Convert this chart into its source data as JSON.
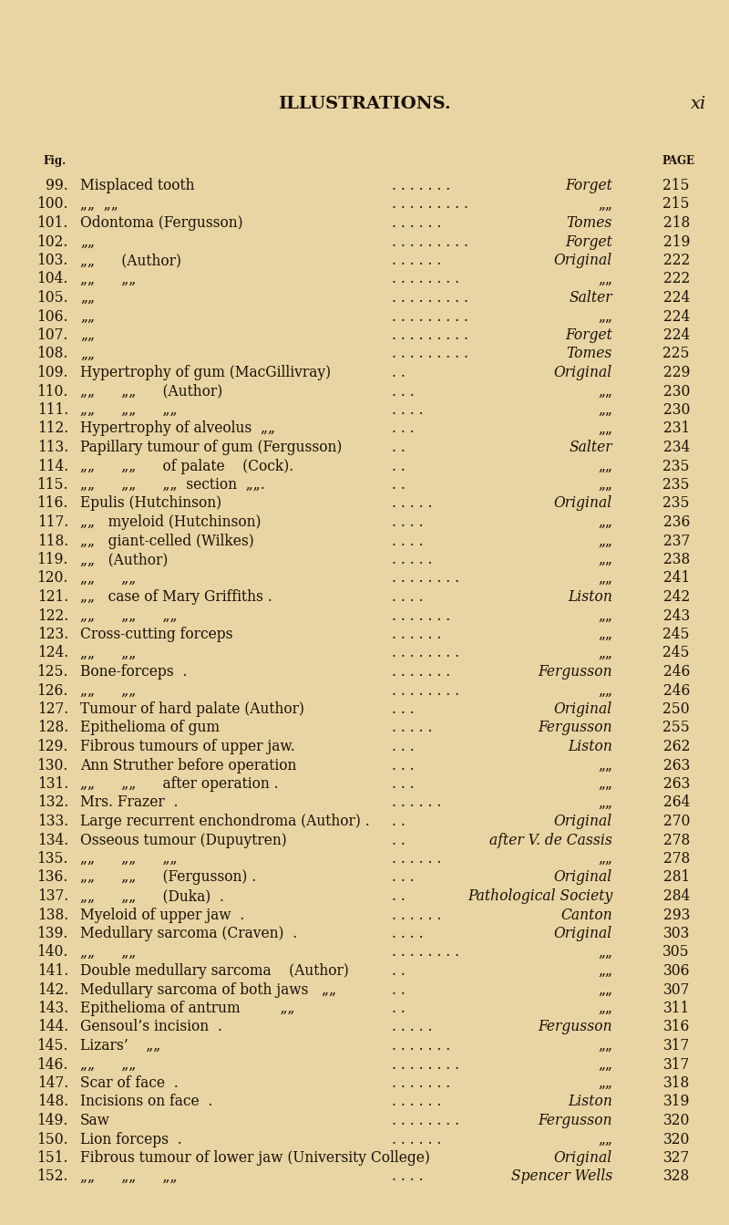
{
  "title": "ILLUSTRATIONS.",
  "page_num": "xi",
  "bg_color": "#e8d5a3",
  "text_color": "#1a1008",
  "rows": [
    {
      "num": "99.",
      "desc": "Misplaced tooth",
      "mid": ". . . . . . .",
      "source": "Forget",
      "src_italic": true,
      "page": "215"
    },
    {
      "num": "100.",
      "desc": "„„  „„",
      "mid": ". . . . . . . . .",
      "source": "„„",
      "src_italic": false,
      "page": "215"
    },
    {
      "num": "101.",
      "desc": "Odontoma (Fergusson)",
      "mid": ". . . . . .",
      "source": "Tomes",
      "src_italic": true,
      "page": "218"
    },
    {
      "num": "102.",
      "desc": "„„",
      "mid": ". . . . . . . . .",
      "source": "Forget",
      "src_italic": true,
      "page": "219"
    },
    {
      "num": "103.",
      "desc": "„„      (Author)",
      "mid": ". . . . . .",
      "source": "Original",
      "src_italic": true,
      "page": "222"
    },
    {
      "num": "104.",
      "desc": "„„      „„",
      "mid": ". . . . . . . .",
      "source": "„„",
      "src_italic": false,
      "page": "222"
    },
    {
      "num": "105.",
      "desc": "„„",
      "mid": ". . . . . . . . .",
      "source": "Salter",
      "src_italic": true,
      "page": "224"
    },
    {
      "num": "106.",
      "desc": "„„",
      "mid": ". . . . . . . . .",
      "source": "„„",
      "src_italic": false,
      "page": "224"
    },
    {
      "num": "107.",
      "desc": "„„",
      "mid": ". . . . . . . . .",
      "source": "Forget",
      "src_italic": true,
      "page": "224"
    },
    {
      "num": "108.",
      "desc": "„„",
      "mid": ". . . . . . . . .",
      "source": "Tomes",
      "src_italic": true,
      "page": "225"
    },
    {
      "num": "109.",
      "desc": "Hypertrophy of gum (MacGillivray)",
      "mid": ". .",
      "source": "Original",
      "src_italic": true,
      "page": "229"
    },
    {
      "num": "110.",
      "desc": "„„      „„      (Author)",
      "mid": ". . .",
      "source": "„„",
      "src_italic": false,
      "page": "230"
    },
    {
      "num": "111.",
      "desc": "„„      „„      „„",
      "mid": ". . . .",
      "source": "„„",
      "src_italic": false,
      "page": "230"
    },
    {
      "num": "112.",
      "desc": "Hypertrophy of alveolus  „„",
      "mid": ". . .",
      "source": "„„",
      "src_italic": false,
      "page": "231"
    },
    {
      "num": "113.",
      "desc": "Papillary tumour of gum (Fergusson)",
      "mid": ". .",
      "source": "Salter",
      "src_italic": true,
      "page": "234"
    },
    {
      "num": "114.",
      "desc": "„„      „„      of palate    (Cock).",
      "mid": ". .",
      "source": "„„",
      "src_italic": false,
      "page": "235"
    },
    {
      "num": "115.",
      "desc": "„„      „„      „„  section  „„.",
      "mid": ". .",
      "source": "„„",
      "src_italic": false,
      "page": "235"
    },
    {
      "num": "116.",
      "desc": "Epulis (Hutchinson)",
      "mid": ". . . . .",
      "source": "Original",
      "src_italic": true,
      "page": "235"
    },
    {
      "num": "117.",
      "desc": "„„   myeloid (Hutchinson)",
      "mid": ". . . .",
      "source": "„„",
      "src_italic": false,
      "page": "236"
    },
    {
      "num": "118.",
      "desc": "„„   giant-celled (Wilkes)",
      "mid": ". . . .",
      "source": "„„",
      "src_italic": false,
      "page": "237"
    },
    {
      "num": "119.",
      "desc": "„„   (Author)",
      "mid": ". . . . .",
      "source": "„„",
      "src_italic": false,
      "page": "238"
    },
    {
      "num": "120.",
      "desc": "„„      „„",
      "mid": ". . . . . . . .",
      "source": "„„",
      "src_italic": false,
      "page": "241"
    },
    {
      "num": "121.",
      "desc": "„„   case of Mary Griffiths .",
      "mid": ". . . .",
      "source": "Liston",
      "src_italic": true,
      "page": "242"
    },
    {
      "num": "122.",
      "desc": "„„      „„      „„",
      "mid": ". . . . . . .",
      "source": "„„",
      "src_italic": false,
      "page": "243"
    },
    {
      "num": "123.",
      "desc": "Cross-cutting forceps",
      "mid": ". . . . . .",
      "source": "„„",
      "src_italic": false,
      "page": "245"
    },
    {
      "num": "124.",
      "desc": "„„      „„",
      "mid": ". . . . . . . .",
      "source": "„„",
      "src_italic": false,
      "page": "245"
    },
    {
      "num": "125.",
      "desc": "Bone-forceps  .",
      "mid": ". . . . . . .",
      "source": "Fergusson",
      "src_italic": true,
      "page": "246"
    },
    {
      "num": "126.",
      "desc": "„„      „„",
      "mid": ". . . . . . . .",
      "source": "„„",
      "src_italic": false,
      "page": "246"
    },
    {
      "num": "127.",
      "desc": "Tumour of hard palate (Author)",
      "mid": ". . .",
      "source": "Original",
      "src_italic": true,
      "page": "250"
    },
    {
      "num": "128.",
      "desc": "Epithelioma of gum",
      "mid": ". . . . .",
      "source": "Fergusson",
      "src_italic": true,
      "page": "255"
    },
    {
      "num": "129.",
      "desc": "Fibrous tumours of upper jaw.",
      "mid": ". . .",
      "source": "Liston",
      "src_italic": true,
      "page": "262"
    },
    {
      "num": "130.",
      "desc": "Ann Struther before operation",
      "mid": ". . .",
      "source": "„„",
      "src_italic": false,
      "page": "263"
    },
    {
      "num": "131.",
      "desc": "„„      „„      after operation .",
      "mid": ". . .",
      "source": "„„",
      "src_italic": false,
      "page": "263"
    },
    {
      "num": "132.",
      "desc": "Mrs. Frazer  .",
      "mid": ". . . . . .",
      "source": "„„",
      "src_italic": false,
      "page": "264"
    },
    {
      "num": "133.",
      "desc": "Large recurrent enchondroma (Author) .",
      "mid": ". .",
      "source": "Original",
      "src_italic": true,
      "page": "270"
    },
    {
      "num": "134.",
      "desc": "Osseous tumour (Dupuytren)",
      "mid": ". .",
      "source": "after V. de Cassis",
      "src_italic": true,
      "page": "278"
    },
    {
      "num": "135.",
      "desc": "„„      „„      „„",
      "mid": ". . . . . .",
      "source": "„„",
      "src_italic": false,
      "page": "278"
    },
    {
      "num": "136.",
      "desc": "„„      „„      (Fergusson) .",
      "mid": ". . .",
      "source": "Original",
      "src_italic": true,
      "page": "281"
    },
    {
      "num": "137.",
      "desc": "„„      „„      (Duka)  .",
      "mid": ". .",
      "source": "Pathological Society",
      "src_italic": true,
      "page": "284"
    },
    {
      "num": "138.",
      "desc": "Myeloid of upper jaw  .",
      "mid": ". . . . . .",
      "source": "Canton",
      "src_italic": true,
      "page": "293"
    },
    {
      "num": "139.",
      "desc": "Medullary sarcoma (Craven)  .",
      "mid": ". . . .",
      "source": "Original",
      "src_italic": true,
      "page": "303"
    },
    {
      "num": "140.",
      "desc": "„„      „„",
      "mid": ". . . . . . . .",
      "source": "„„",
      "src_italic": false,
      "page": "305"
    },
    {
      "num": "141.",
      "desc": "Double medullary sarcoma    (Author)",
      "mid": ". .",
      "source": "„„",
      "src_italic": false,
      "page": "306"
    },
    {
      "num": "142.",
      "desc": "Medullary sarcoma of both jaws   „„",
      "mid": ". .",
      "source": "„„",
      "src_italic": false,
      "page": "307"
    },
    {
      "num": "143.",
      "desc": "Epithelioma of antrum         „„",
      "mid": ". .",
      "source": "„„",
      "src_italic": false,
      "page": "311"
    },
    {
      "num": "144.",
      "desc": "Gensoul’s incision  .",
      "mid": ". . . . .",
      "source": "Fergusson",
      "src_italic": true,
      "page": "316"
    },
    {
      "num": "145.",
      "desc": "Lizars’    „„",
      "mid": ". . . . . . .",
      "source": "„„",
      "src_italic": false,
      "page": "317"
    },
    {
      "num": "146.",
      "desc": "„„      „„",
      "mid": ". . . . . . . .",
      "source": "„„",
      "src_italic": false,
      "page": "317"
    },
    {
      "num": "147.",
      "desc": "Scar of face  .",
      "mid": ". . . . . . .",
      "source": "„„",
      "src_italic": false,
      "page": "318"
    },
    {
      "num": "148.",
      "desc": "Incisions on face  .",
      "mid": ". . . . . .",
      "source": "Liston",
      "src_italic": true,
      "page": "319"
    },
    {
      "num": "149.",
      "desc": "Saw",
      "mid": ". . . . . . . .",
      "source": "Fergusson",
      "src_italic": true,
      "page": "320"
    },
    {
      "num": "150.",
      "desc": "Lion forceps  .",
      "mid": ". . . . . .",
      "source": "„„",
      "src_italic": false,
      "page": "320"
    },
    {
      "num": "151.",
      "desc": "Fibrous tumour of lower jaw (University College)",
      "mid": "",
      "source": "Original",
      "src_italic": true,
      "page": "327"
    },
    {
      "num": "152.",
      "desc": "„„      „„      „„",
      "mid": ". . . .",
      "source": "Spencer Wells",
      "src_italic": true,
      "page": "328"
    }
  ]
}
